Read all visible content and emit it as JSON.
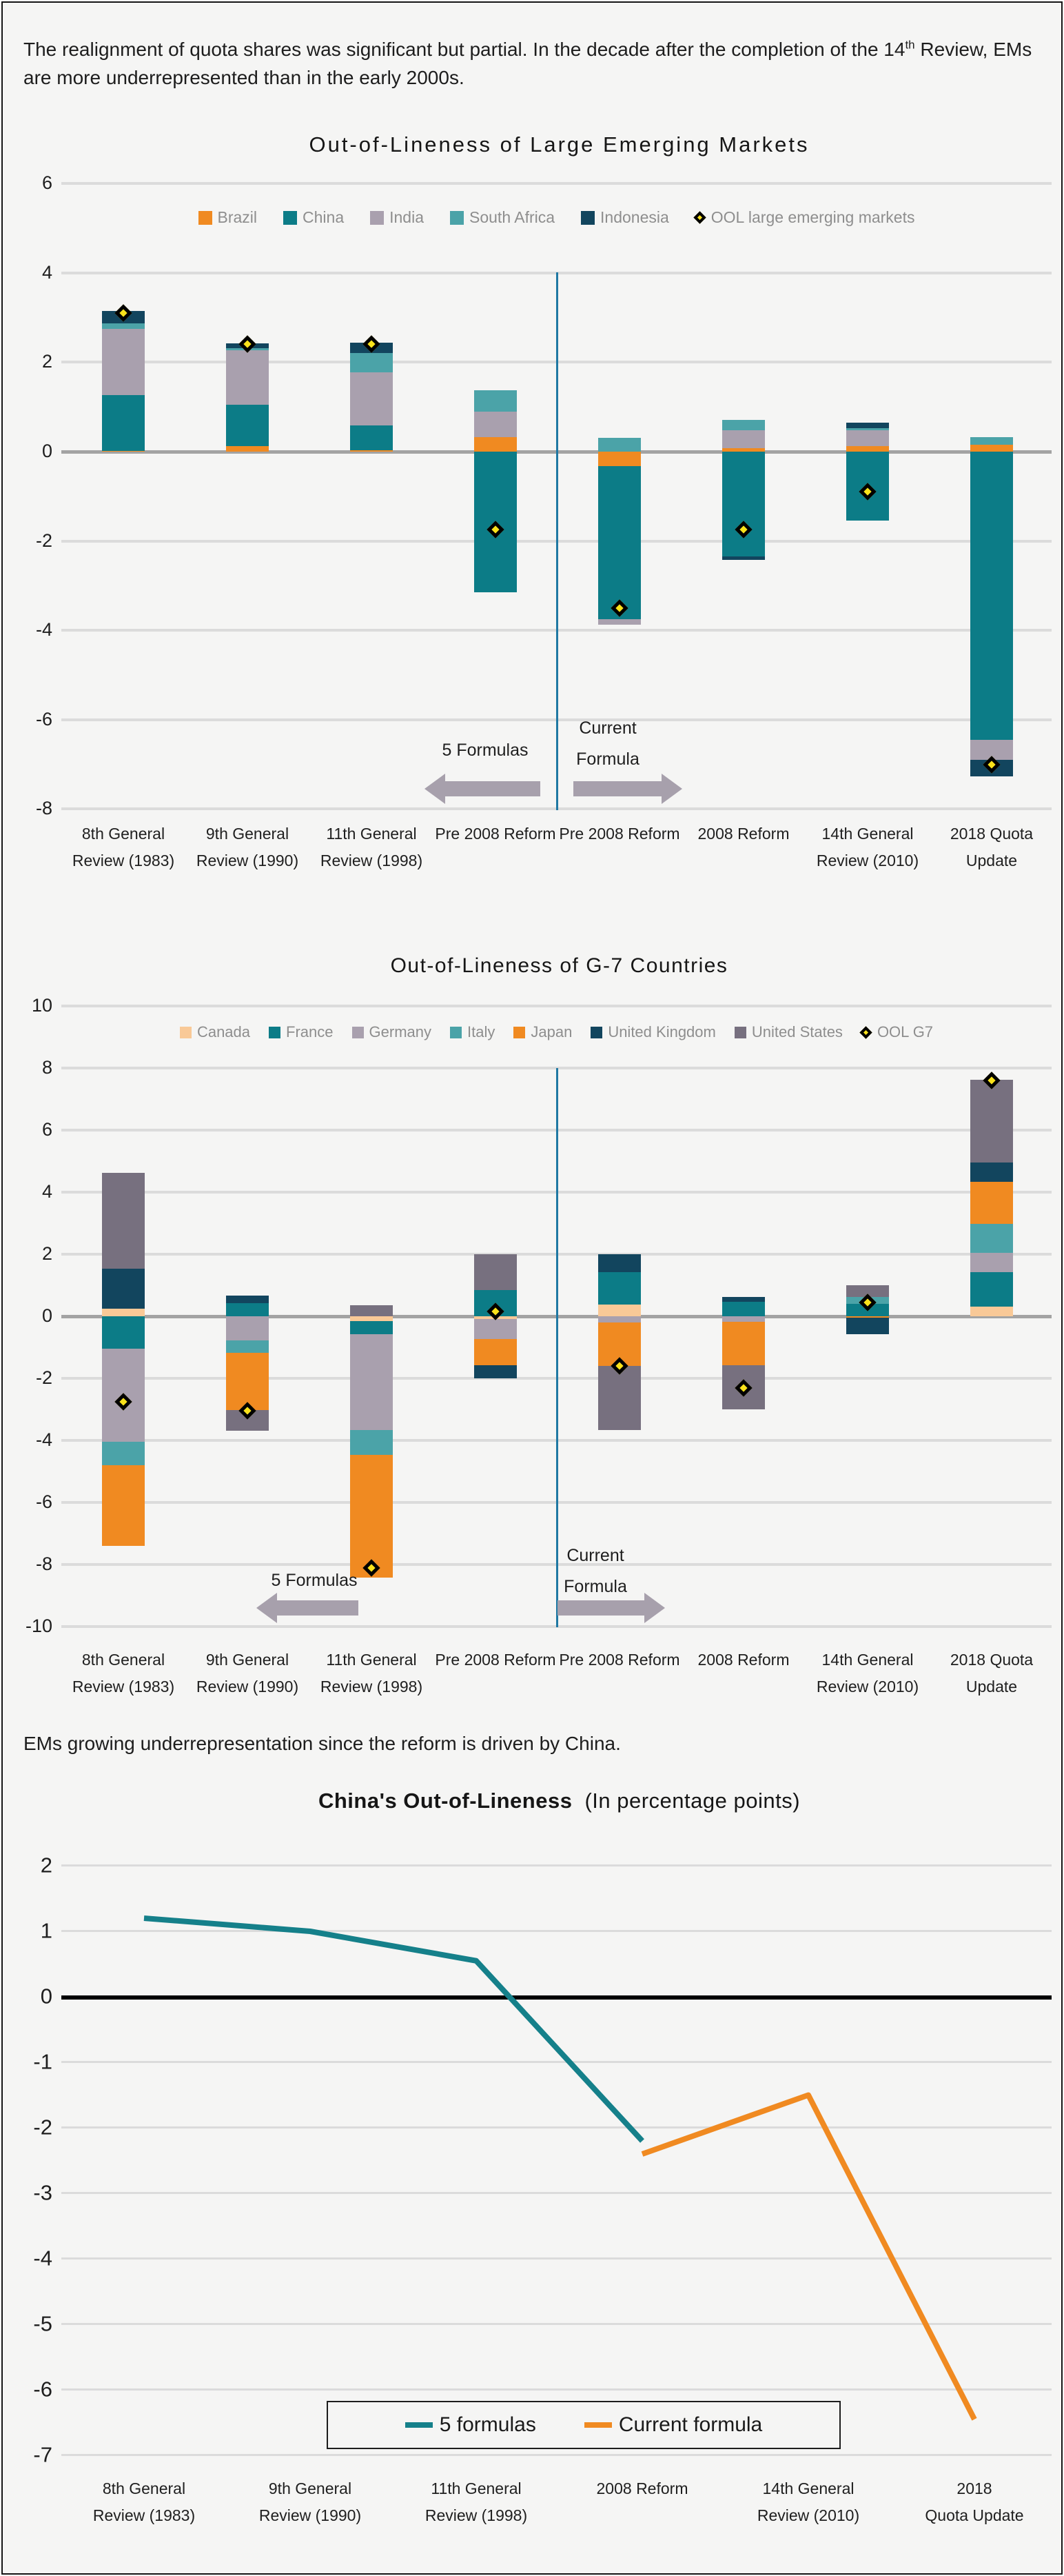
{
  "page": {
    "top_note": {
      "before_sup": "The realignment of quota shares was significant but partial. In the decade after the completion of the 14",
      "sup": "th",
      "after_sup": " Review, EMs are more underrepresented than in the early 2000s."
    },
    "middle_note": "EMs growing underrepresentation since the reform is driven by China."
  },
  "colors": {
    "background": "#F5F5F4",
    "gridline": "#DBDBDB",
    "zero_line_bar_charts": "#A3A3A3",
    "zero_line_line_chart": "#000000",
    "divider_blue": "#1F78A3",
    "arrow_gray": "#A7A0AC",
    "marker_yellow": "#F9E21B",
    "legend_text": "#8E8E8E"
  },
  "chart_data": [
    {
      "type": "bar",
      "stacked": true,
      "title": "Out-of-Lineness of Large Emerging Markets",
      "ylabel": "",
      "ylim": [
        -8,
        6
      ],
      "ytick_step": 2,
      "grid": true,
      "legend_position": "top",
      "categories": [
        [
          "8th General",
          "Review (1983)"
        ],
        [
          "9th General",
          "Review (1990)"
        ],
        [
          "11th General",
          "Review (1998)"
        ],
        [
          "Pre 2008 Reform"
        ],
        [
          "Pre 2008 Reform"
        ],
        [
          "2008 Reform"
        ],
        [
          "14th General",
          "Review (2010)"
        ],
        [
          "2018 Quota",
          "Update"
        ]
      ],
      "series": [
        {
          "name": "Brazil",
          "color": "#F08A21",
          "values": [
            0.02,
            0.13,
            0.03,
            0.32,
            -0.32,
            0.08,
            0.12,
            0.15
          ]
        },
        {
          "name": "China",
          "color": "#0C7C87",
          "values": [
            1.24,
            0.92,
            0.56,
            -3.15,
            -3.43,
            -2.34,
            -1.54,
            -6.45
          ]
        },
        {
          "name": "India",
          "color": "#A9A0AE",
          "values": [
            1.48,
            1.22,
            1.18,
            0.58,
            -0.12,
            0.4,
            0.36,
            -0.45
          ]
        },
        {
          "name": "South Africa",
          "color": "#4BA3A8",
          "values": [
            0.13,
            0.05,
            0.44,
            0.48,
            0.31,
            0.23,
            0.05,
            0.17
          ]
        },
        {
          "name": "Indonesia",
          "color": "#12455E",
          "values": [
            0.28,
            0.1,
            0.23,
            0,
            0,
            -0.09,
            0.12,
            -0.37
          ]
        }
      ],
      "marker_series": {
        "name": "OOL large emerging markets",
        "fill": "#F9E21B",
        "values": [
          3.1,
          2.4,
          2.4,
          -1.75,
          -3.5,
          -1.75,
          -0.9,
          -7.0
        ]
      },
      "annotations": {
        "left_arrow_label": "5 Formulas",
        "right_arrow_label": [
          "Current",
          "Formula"
        ]
      }
    },
    {
      "type": "bar",
      "stacked": true,
      "title": "Out-of-Lineness of G-7 Countries",
      "ylabel": "",
      "ylim": [
        -10,
        10
      ],
      "ytick_step": 2,
      "grid": true,
      "legend_position": "top",
      "categories": [
        [
          "8th General",
          "Review (1983)"
        ],
        [
          "9th General",
          "Review (1990)"
        ],
        [
          "11th General",
          "Review (1998)"
        ],
        [
          "Pre 2008 Reform"
        ],
        [
          "Pre 2008 Reform"
        ],
        [
          "2008 Reform"
        ],
        [
          "14th General",
          "Review (2010)"
        ],
        [
          "2018 Quota",
          "Update"
        ]
      ],
      "series": [
        {
          "name": "Canada",
          "color": "#F9C997",
          "values": [
            0.25,
            0,
            -0.15,
            -0.08,
            0.37,
            0,
            0,
            0.32
          ]
        },
        {
          "name": "France",
          "color": "#0C7C87",
          "values": [
            -1.05,
            0.42,
            -0.42,
            0.85,
            1.06,
            0.46,
            0.4,
            1.11
          ]
        },
        {
          "name": "Germany",
          "color": "#A9A0AE",
          "values": [
            -3.0,
            -0.77,
            -3.1,
            -0.65,
            -0.2,
            -0.18,
            0,
            0.61
          ]
        },
        {
          "name": "Italy",
          "color": "#4BA3A8",
          "values": [
            -0.75,
            -0.4,
            -0.8,
            0,
            0,
            0,
            0.22,
            0.94
          ]
        },
        {
          "name": "Japan",
          "color": "#F08A21",
          "values": [
            -2.6,
            -1.85,
            -3.95,
            -0.85,
            -1.4,
            -1.4,
            -0.05,
            1.35
          ]
        },
        {
          "name": "United Kingdom",
          "color": "#12455E",
          "values": [
            1.28,
            0.25,
            0,
            -0.42,
            0.57,
            0.17,
            -0.52,
            0.63
          ]
        },
        {
          "name": "United States",
          "color": "#77707F",
          "values": [
            3.1,
            -0.68,
            0.35,
            1.15,
            -2.07,
            -1.42,
            0.38,
            2.66
          ]
        }
      ],
      "marker_series": {
        "name": "OOL G7",
        "fill": "#F9E21B",
        "values": [
          -2.75,
          -3.05,
          -8.1,
          0.15,
          -1.6,
          -2.3,
          0.45,
          7.6
        ]
      },
      "annotations": {
        "left_arrow_label": "5 Formulas",
        "right_arrow_label": [
          "Current",
          "Formula"
        ]
      }
    },
    {
      "type": "line",
      "title": "China's Out-of-Lineness",
      "subtitle": "(In percentage points)",
      "ylim": [
        -7,
        2
      ],
      "ytick_step": 1,
      "grid": true,
      "legend_position": "bottom-box",
      "categories": [
        [
          "8th General",
          "Review (1983)"
        ],
        [
          "9th General",
          "Review (1990)"
        ],
        [
          "11th General",
          "Review (1998)"
        ],
        [
          "2008 Reform"
        ],
        [
          "14th General",
          "Review (2010)"
        ],
        [
          "2018",
          "Quota Update"
        ]
      ],
      "series": [
        {
          "name": "5 formulas",
          "color": "#15808A",
          "values": [
            1.2,
            1.0,
            0.55,
            -2.2,
            null,
            null
          ]
        },
        {
          "name": "Current formula",
          "color": "#F08A21",
          "values": [
            null,
            null,
            null,
            -2.4,
            -1.5,
            -6.45
          ]
        }
      ]
    }
  ]
}
